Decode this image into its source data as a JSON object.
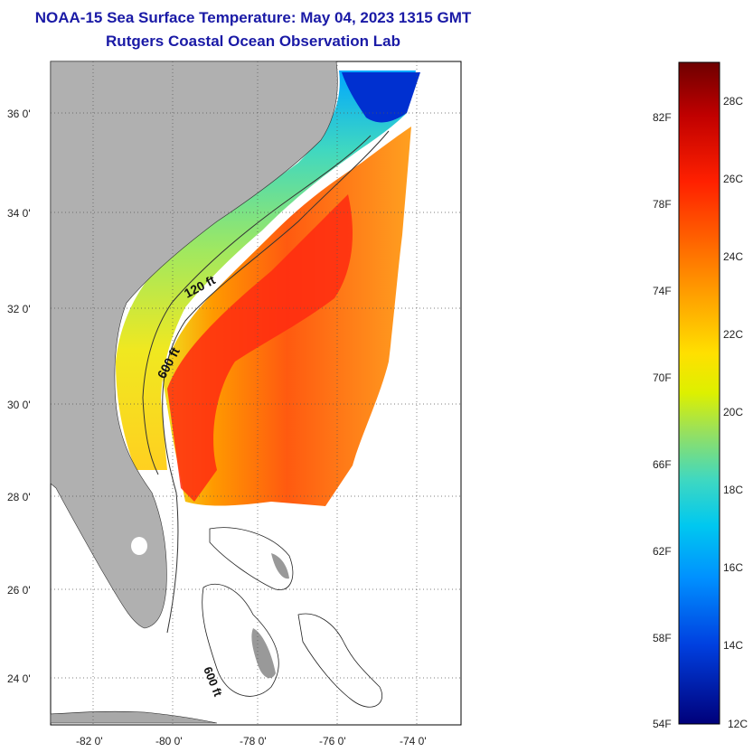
{
  "header": {
    "title": "NOAA-15 Sea Surface Temperature:  May 04, 2023 1315 GMT",
    "subtitle": "Rutgers Coastal Ocean Observation Lab"
  },
  "map": {
    "lat_ticks": [
      "36 0'",
      "34 0'",
      "32 0'",
      "30 0'",
      "28 0'",
      "26 0'",
      "24 0'"
    ],
    "lon_ticks": [
      "-82 0'",
      "-80 0'",
      "-78 0'",
      "-76 0'",
      "-74 0'"
    ],
    "isobaths": [
      "120 ft",
      "600 ft",
      "600 ft"
    ]
  },
  "colorbar": {
    "fahrenheit": [
      "82F",
      "78F",
      "74F",
      "70F",
      "66F",
      "62F",
      "58F",
      "54F"
    ],
    "celsius": [
      "28C",
      "26C",
      "24C",
      "22C",
      "20C",
      "18C",
      "16C",
      "14C",
      "12C"
    ],
    "colors": [
      "#7a0000",
      "#c40000",
      "#ff2a00",
      "#ff7a00",
      "#ffb000",
      "#ffe600",
      "#d8f000",
      "#8ee060",
      "#3ed8c0",
      "#00c8f0",
      "#0090ff",
      "#0040e0",
      "#00008a"
    ]
  }
}
